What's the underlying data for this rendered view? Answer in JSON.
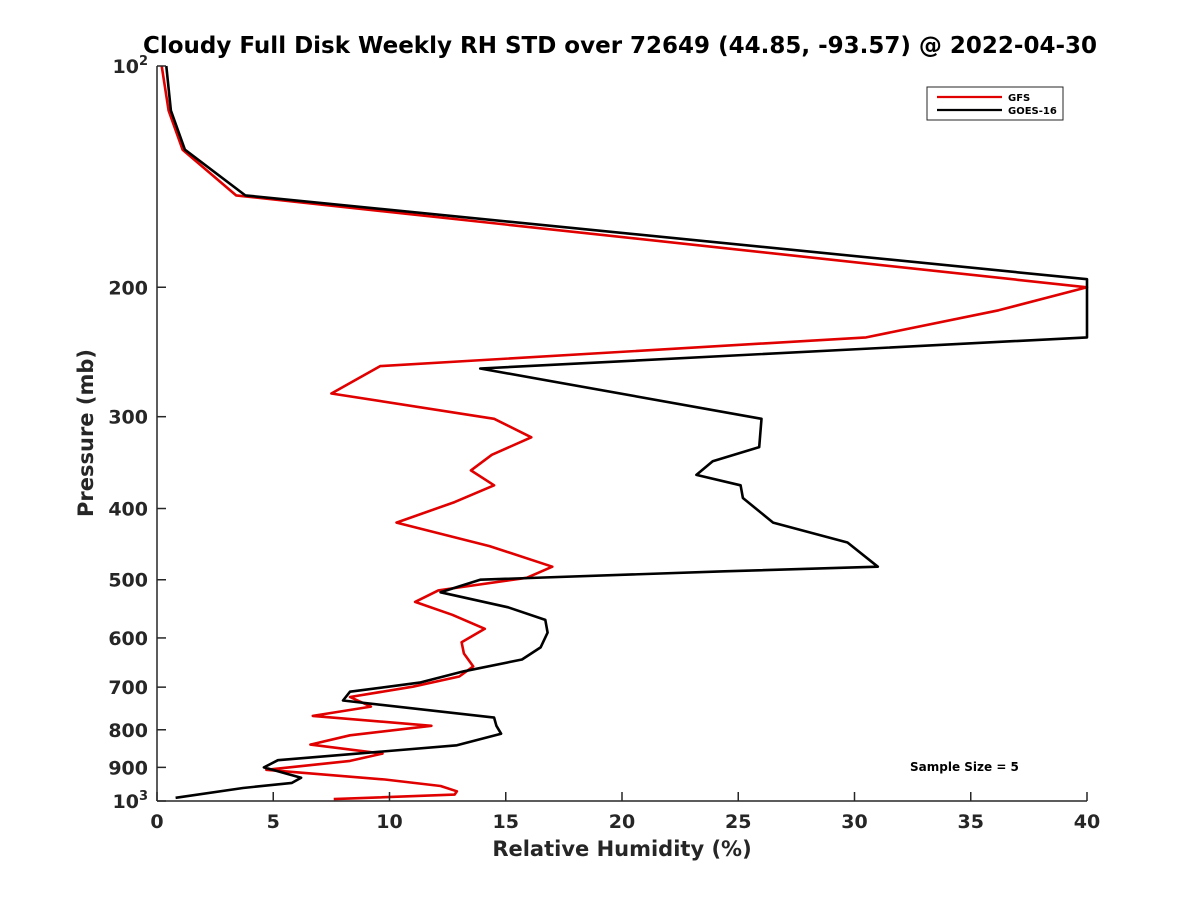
{
  "chart_data": {
    "type": "line",
    "title": "Cloudy Full Disk Weekly RH STD over 72649 (44.85, -93.57) @ 2022-04-30",
    "xlabel": "Relative Humidity (%)",
    "ylabel": "Pressure (mb)",
    "xlim": [
      0,
      40
    ],
    "ylim": [
      100,
      1000
    ],
    "yscale": "log",
    "y_reversed": true,
    "x_ticks": [
      "0",
      "5",
      "10",
      "15",
      "20",
      "25",
      "30",
      "35",
      "40"
    ],
    "y_ticks": [
      {
        "value": 100,
        "base": "10",
        "exp": "2"
      },
      {
        "value": 200,
        "label": "200"
      },
      {
        "value": 300,
        "label": "300"
      },
      {
        "value": 400,
        "label": "400"
      },
      {
        "value": 500,
        "label": "500"
      },
      {
        "value": 600,
        "label": "600"
      },
      {
        "value": 700,
        "label": "700"
      },
      {
        "value": 800,
        "label": "800"
      },
      {
        "value": 900,
        "label": "900"
      },
      {
        "value": 1000,
        "base": "10",
        "exp": "3"
      }
    ],
    "grid": false,
    "legend_position": "top-right",
    "series": [
      {
        "name": "GFS",
        "color": "#e00000",
        "x": [
          0.2,
          0.5,
          1.1,
          3.4,
          40.0,
          36.2,
          30.5,
          9.6,
          7.5,
          14.5,
          16.1,
          14.4,
          13.5,
          14.5,
          12.8,
          10.3,
          14.3,
          17.0,
          15.9,
          12.1,
          11.1,
          12.7,
          14.1,
          13.1,
          13.2,
          13.6,
          13.0,
          11.0,
          8.3,
          9.2,
          6.7,
          11.8,
          8.3,
          6.6,
          9.7,
          8.3,
          4.7,
          9.8,
          12.2,
          12.9,
          12.8,
          7.6
        ],
        "y": [
          100,
          115,
          130,
          150,
          200,
          215,
          234,
          256,
          279,
          302,
          320,
          338,
          355,
          372,
          392,
          418,
          450,
          480,
          497,
          517,
          536,
          558,
          583,
          608,
          630,
          656,
          677,
          699,
          722,
          744,
          766,
          790,
          814,
          838,
          862,
          882,
          907,
          935,
          954,
          970,
          980,
          994
        ]
      },
      {
        "name": "GOES-16",
        "color": "#000000",
        "x": [
          0.4,
          0.6,
          1.2,
          3.8,
          40.0,
          40.0,
          13.9,
          26.0,
          25.9,
          23.9,
          23.2,
          25.1,
          25.2,
          26.5,
          29.7,
          31.0,
          24.4,
          13.9,
          12.2,
          15.1,
          16.7,
          16.8,
          16.5,
          15.7,
          13.2,
          11.3,
          8.3,
          8.0,
          14.5,
          14.6,
          14.8,
          12.9,
          5.2,
          4.6,
          6.2,
          5.8,
          3.7,
          0.8
        ],
        "y": [
          100,
          115,
          130,
          150,
          195,
          234,
          258,
          302,
          330,
          345,
          360,
          372,
          387,
          418,
          445,
          480,
          487,
          500,
          520,
          545,
          567,
          590,
          618,
          642,
          666,
          690,
          710,
          730,
          770,
          790,
          810,
          840,
          880,
          900,
          930,
          945,
          960,
          990
        ]
      }
    ],
    "annotation": "Sample Size = 5"
  }
}
